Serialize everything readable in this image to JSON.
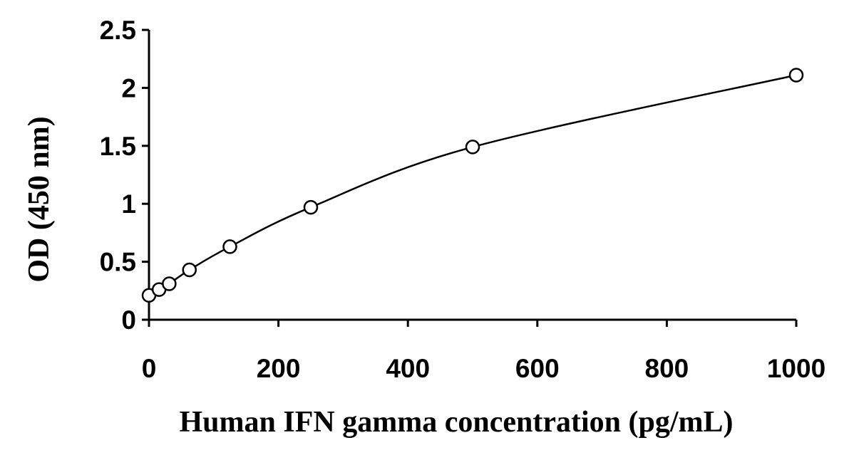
{
  "chart_data": {
    "type": "scatter",
    "xlabel": "Human IFN gamma concentration (pg/mL)",
    "ylabel": "OD (450 nm)",
    "x": [
      0,
      15.6,
      31.25,
      62.5,
      125,
      250,
      500,
      1000
    ],
    "values": [
      0.21,
      0.26,
      0.31,
      0.43,
      0.63,
      0.97,
      1.49,
      2.11
    ],
    "color": "#000000",
    "fit_curve": true,
    "xlim": [
      0,
      1000
    ],
    "xticks": [
      0,
      200,
      400,
      600,
      800,
      1000
    ],
    "ylim": [
      0,
      2.5
    ],
    "yticks": [
      0,
      0.5,
      1,
      1.5,
      2,
      2.5
    ],
    "grid": false
  }
}
